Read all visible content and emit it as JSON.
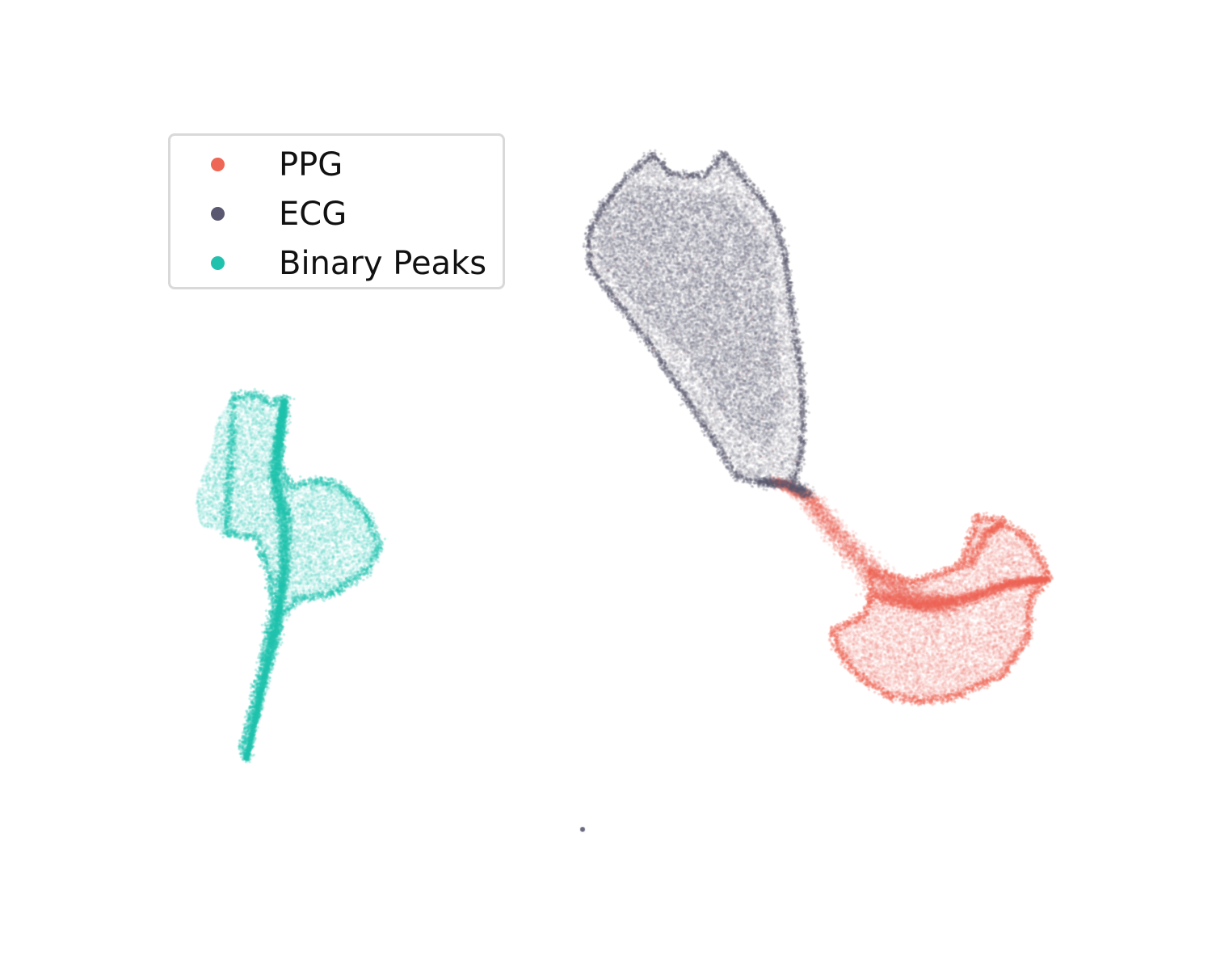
{
  "chart_data": {
    "type": "scatter",
    "title": "",
    "xlabel": "",
    "ylabel": "",
    "axes_visible": false,
    "grid": false,
    "legend_position": "upper-left",
    "series": [
      {
        "name": "PPG",
        "color": "#ee6656"
      },
      {
        "name": "ECG",
        "color": "#5a5870"
      },
      {
        "name": "Binary Peaks",
        "color": "#20c2ae"
      }
    ]
  }
}
